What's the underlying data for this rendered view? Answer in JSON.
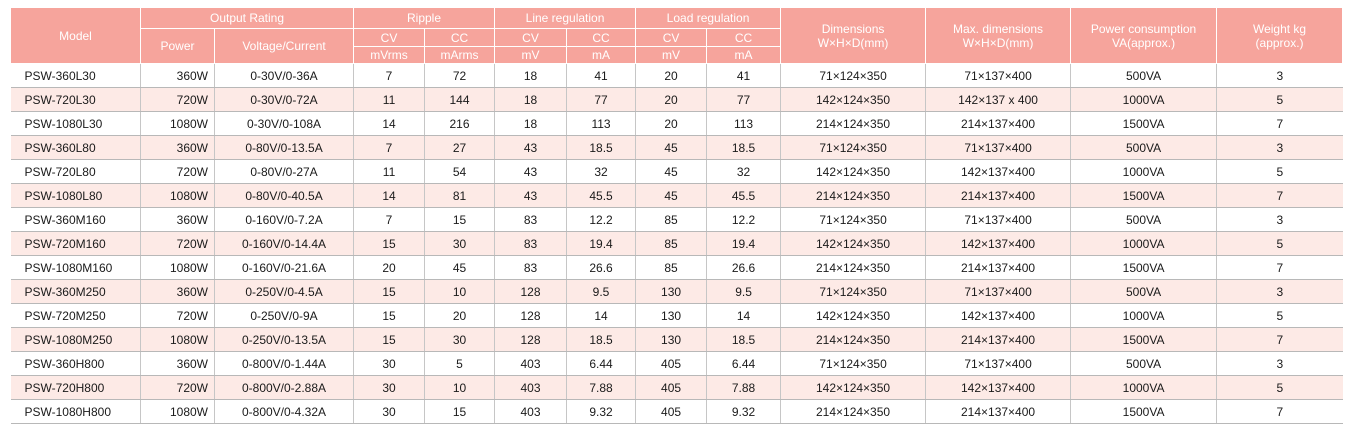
{
  "headers": {
    "model": "Model",
    "output_rating": "Output Rating",
    "power": "Power",
    "voltage_current": "Voltage/Current",
    "ripple": "Ripple",
    "line_regulation": "Line regulation",
    "load_regulation": "Load regulation",
    "cv": "CV",
    "cc": "CC",
    "ripple_cv_unit": "mVrms",
    "ripple_cc_unit": "mArms",
    "line_cv_unit": "mV",
    "line_cc_unit": "mA",
    "load_cv_unit": "mV",
    "load_cc_unit": "mA",
    "dimensions": "Dimensions",
    "dimensions_sub": "W×H×D(mm)",
    "max_dimensions": "Max. dimensions",
    "max_dimensions_sub": "W×H×D(mm)",
    "power_consumption": "Power consumption",
    "power_consumption_sub": "VA(approx.)",
    "weight": "Weight kg",
    "weight_sub": "(approx.)"
  },
  "rows": [
    {
      "model": "PSW-360L30",
      "power": "360W",
      "vc": "0-30V/0-36A",
      "ripple_cv": "7",
      "ripple_cc": "72",
      "line_cv": "18",
      "line_cc": "41",
      "load_cv": "20",
      "load_cc": "41",
      "dims": "71×124×350",
      "max_dims": "71×137×400",
      "consumption": "500VA",
      "weight": "3"
    },
    {
      "model": "PSW-720L30",
      "power": "720W",
      "vc": "0-30V/0-72A",
      "ripple_cv": "11",
      "ripple_cc": "144",
      "line_cv": "18",
      "line_cc": "77",
      "load_cv": "20",
      "load_cc": "77",
      "dims": "142×124×350",
      "max_dims": "142×137 x 400",
      "consumption": "1000VA",
      "weight": "5"
    },
    {
      "model": "PSW-1080L30",
      "power": "1080W",
      "vc": "0-30V/0-108A",
      "ripple_cv": "14",
      "ripple_cc": "216",
      "line_cv": "18",
      "line_cc": "113",
      "load_cv": "20",
      "load_cc": "113",
      "dims": "214×124×350",
      "max_dims": "214×137×400",
      "consumption": "1500VA",
      "weight": "7"
    },
    {
      "model": "PSW-360L80",
      "power": "360W",
      "vc": "0-80V/0-13.5A",
      "ripple_cv": "7",
      "ripple_cc": "27",
      "line_cv": "43",
      "line_cc": "18.5",
      "load_cv": "45",
      "load_cc": "18.5",
      "dims": "71×124×350",
      "max_dims": "71×137×400",
      "consumption": "500VA",
      "weight": "3"
    },
    {
      "model": "PSW-720L80",
      "power": "720W",
      "vc": "0-80V/0-27A",
      "ripple_cv": "11",
      "ripple_cc": "54",
      "line_cv": "43",
      "line_cc": "32",
      "load_cv": "45",
      "load_cc": "32",
      "dims": "142×124×350",
      "max_dims": "142×137×400",
      "consumption": "1000VA",
      "weight": "5"
    },
    {
      "model": "PSW-1080L80",
      "power": "1080W",
      "vc": "0-80V/0-40.5A",
      "ripple_cv": "14",
      "ripple_cc": "81",
      "line_cv": "43",
      "line_cc": "45.5",
      "load_cv": "45",
      "load_cc": "45.5",
      "dims": "214×124×350",
      "max_dims": "214×137×400",
      "consumption": "1500VA",
      "weight": "7"
    },
    {
      "model": "PSW-360M160",
      "power": "360W",
      "vc": "0-160V/0-7.2A",
      "ripple_cv": "7",
      "ripple_cc": "15",
      "line_cv": "83",
      "line_cc": "12.2",
      "load_cv": "85",
      "load_cc": "12.2",
      "dims": "71×124×350",
      "max_dims": "71×137×400",
      "consumption": "500VA",
      "weight": "3"
    },
    {
      "model": "PSW-720M160",
      "power": "720W",
      "vc": "0-160V/0-14.4A",
      "ripple_cv": "15",
      "ripple_cc": "30",
      "line_cv": "83",
      "line_cc": "19.4",
      "load_cv": "85",
      "load_cc": "19.4",
      "dims": "142×124×350",
      "max_dims": "142×137×400",
      "consumption": "1000VA",
      "weight": "5"
    },
    {
      "model": "PSW-1080M160",
      "power": "1080W",
      "vc": "0-160V/0-21.6A",
      "ripple_cv": "20",
      "ripple_cc": "45",
      "line_cv": "83",
      "line_cc": "26.6",
      "load_cv": "85",
      "load_cc": "26.6",
      "dims": "214×124×350",
      "max_dims": "214×137×400",
      "consumption": "1500VA",
      "weight": "7"
    },
    {
      "model": "PSW-360M250",
      "power": "360W",
      "vc": "0-250V/0-4.5A",
      "ripple_cv": "15",
      "ripple_cc": "10",
      "line_cv": "128",
      "line_cc": "9.5",
      "load_cv": "130",
      "load_cc": "9.5",
      "dims": "71×124×350",
      "max_dims": "71×137×400",
      "consumption": "500VA",
      "weight": "3"
    },
    {
      "model": "PSW-720M250",
      "power": "720W",
      "vc": "0-250V/0-9A",
      "ripple_cv": "15",
      "ripple_cc": "20",
      "line_cv": "128",
      "line_cc": "14",
      "load_cv": "130",
      "load_cc": "14",
      "dims": "142×124×350",
      "max_dims": "142×137×400",
      "consumption": "1000VA",
      "weight": "5"
    },
    {
      "model": "PSW-1080M250",
      "power": "1080W",
      "vc": "0-250V/0-13.5A",
      "ripple_cv": "15",
      "ripple_cc": "30",
      "line_cv": "128",
      "line_cc": "18.5",
      "load_cv": "130",
      "load_cc": "18.5",
      "dims": "214×124×350",
      "max_dims": "214×137×400",
      "consumption": "1500VA",
      "weight": "7"
    },
    {
      "model": "PSW-360H800",
      "power": "360W",
      "vc": "0-800V/0-1.44A",
      "ripple_cv": "30",
      "ripple_cc": "5",
      "line_cv": "403",
      "line_cc": "6.44",
      "load_cv": "405",
      "load_cc": "6.44",
      "dims": "71×124×350",
      "max_dims": "71×137×400",
      "consumption": "500VA",
      "weight": "3"
    },
    {
      "model": "PSW-720H800",
      "power": "720W",
      "vc": "0-800V/0-2.88A",
      "ripple_cv": "30",
      "ripple_cc": "10",
      "line_cv": "403",
      "line_cc": "7.88",
      "load_cv": "405",
      "load_cc": "7.88",
      "dims": "142×124×350",
      "max_dims": "142×137×400",
      "consumption": "1000VA",
      "weight": "5"
    },
    {
      "model": "PSW-1080H800",
      "power": "1080W",
      "vc": "0-800V/0-4.32A",
      "ripple_cv": "30",
      "ripple_cc": "15",
      "line_cv": "403",
      "line_cc": "9.32",
      "load_cv": "405",
      "load_cc": "9.32",
      "dims": "214×124×350",
      "max_dims": "214×137×400",
      "consumption": "1500VA",
      "weight": "7"
    }
  ],
  "colors": {
    "header_bg": "#f6a49c",
    "alt_row_bg": "#fdeae6"
  }
}
